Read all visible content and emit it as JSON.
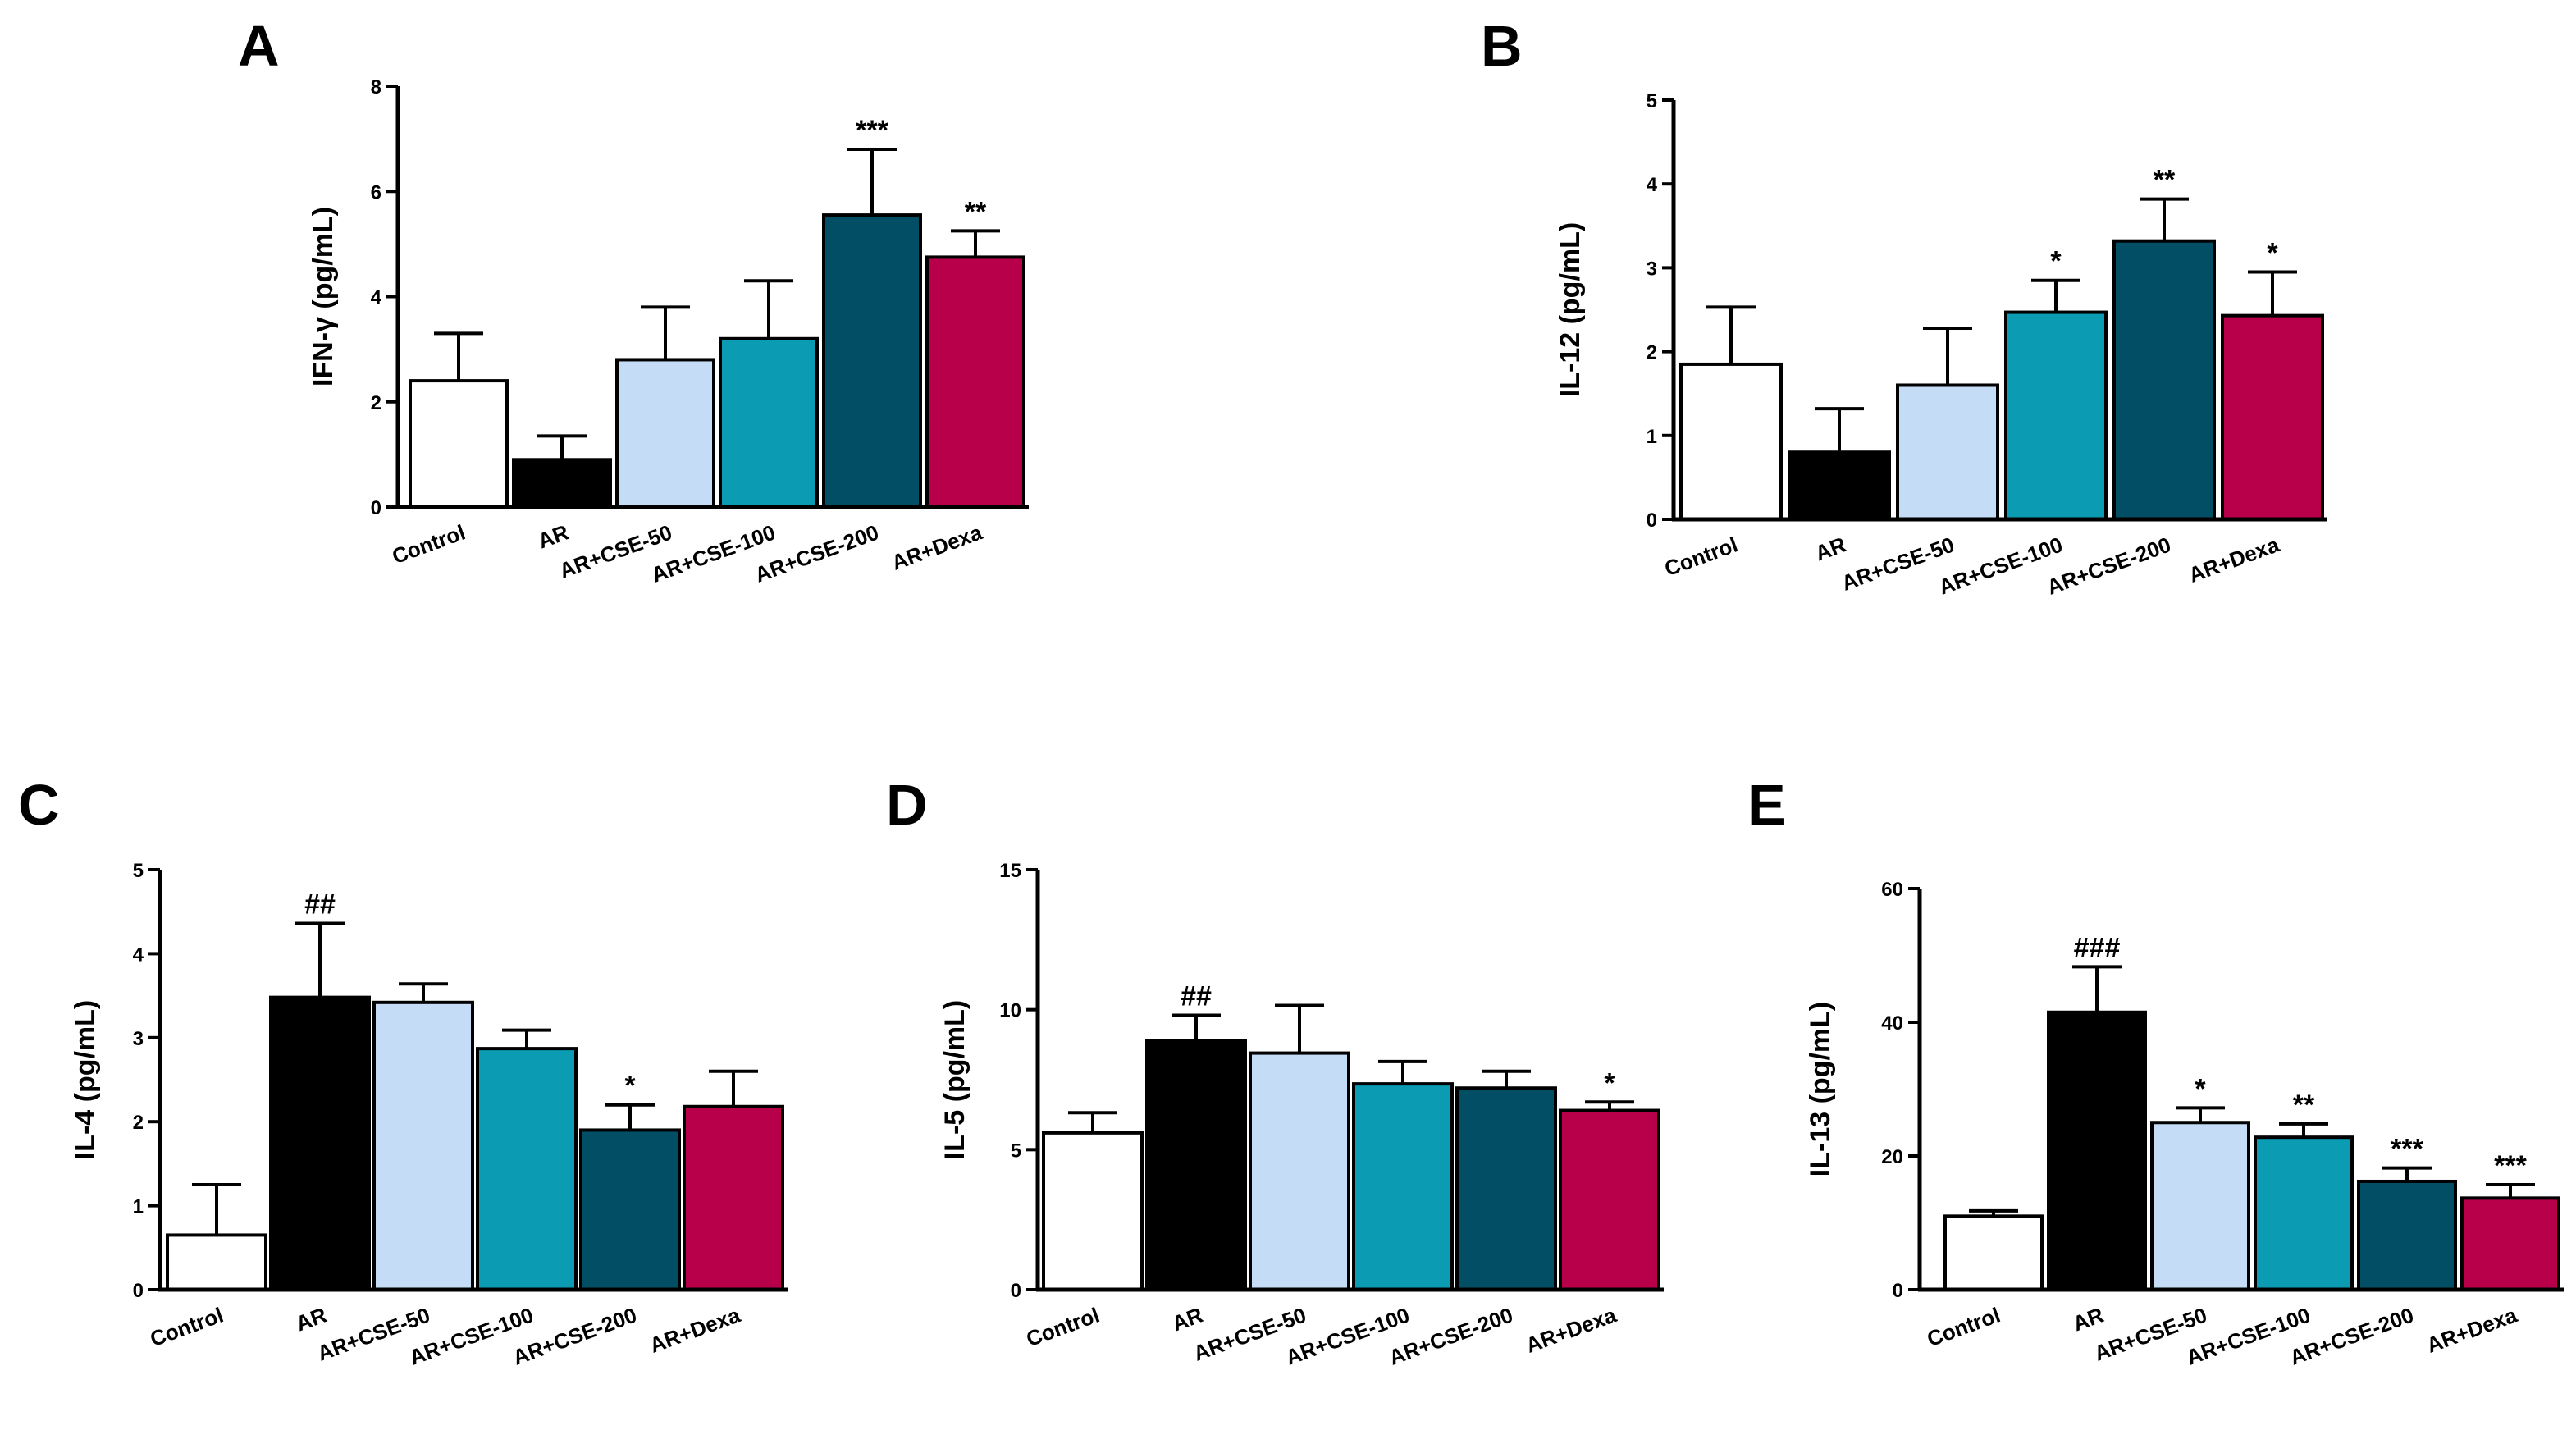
{
  "colors": {
    "Control": "#ffffff",
    "AR": "#000000",
    "AR+CSE-50": "#c4dcf5",
    "AR+CSE-100": "#0b9bb3",
    "AR+CSE-200": "#024f65",
    "AR+Dexa": "#b8004a",
    "axis": "#000000"
  },
  "chart_data": [
    {
      "panel": "A",
      "type": "bar",
      "ylabel": "IFN-γ (pg/mL)",
      "categories": [
        "Control",
        "AR",
        "AR+CSE-50",
        "AR+CSE-100",
        "AR+CSE-200",
        "AR+Dexa"
      ],
      "values": [
        2.4,
        0.9,
        2.8,
        3.2,
        5.55,
        4.75
      ],
      "errors": [
        0.9,
        0.45,
        1.0,
        1.1,
        1.25,
        0.5
      ],
      "significance": [
        "",
        "",
        "",
        "",
        "***",
        "**"
      ],
      "ylim": [
        0,
        8
      ],
      "yticks": [
        "0",
        "2",
        "4",
        "6",
        "8"
      ]
    },
    {
      "panel": "B",
      "type": "bar",
      "ylabel": "IL-12 (pg/mL)",
      "categories": [
        "Control",
        "AR",
        "AR+CSE-50",
        "AR+CSE-100",
        "AR+CSE-200",
        "AR+Dexa"
      ],
      "values": [
        1.85,
        0.8,
        1.6,
        2.47,
        3.32,
        2.43
      ],
      "errors": [
        0.68,
        0.52,
        0.68,
        0.38,
        0.5,
        0.52
      ],
      "significance": [
        "",
        "",
        "",
        "*",
        "**",
        "*"
      ],
      "ylim": [
        0,
        5
      ],
      "yticks": [
        "0",
        "1",
        "2",
        "3",
        "4",
        "5"
      ]
    },
    {
      "panel": "C",
      "type": "bar",
      "ylabel": "IL-4  (pg/mL)",
      "categories": [
        "Control",
        "AR",
        "AR+CSE-50",
        "AR+CSE-100",
        "AR+CSE-200",
        "AR+Dexa"
      ],
      "values": [
        0.65,
        3.48,
        3.42,
        2.87,
        1.9,
        2.18
      ],
      "errors": [
        0.6,
        0.88,
        0.22,
        0.22,
        0.3,
        0.42
      ],
      "significance": [
        "",
        "##",
        "",
        "",
        "*",
        ""
      ],
      "ylim": [
        0,
        5
      ],
      "yticks": [
        "0",
        "1",
        "2",
        "3",
        "4",
        "5"
      ]
    },
    {
      "panel": "D",
      "type": "bar",
      "ylabel": "IL-5  (pg/mL)",
      "categories": [
        "Control",
        "AR",
        "AR+CSE-50",
        "AR+CSE-100",
        "AR+CSE-200",
        "AR+Dexa"
      ],
      "values": [
        5.6,
        8.9,
        8.45,
        7.35,
        7.2,
        6.4
      ],
      "errors": [
        0.72,
        0.9,
        1.7,
        0.8,
        0.6,
        0.3
      ],
      "significance": [
        "",
        "##",
        "",
        "",
        "",
        "*"
      ],
      "ylim": [
        0,
        15
      ],
      "yticks": [
        "0",
        "5",
        "10",
        "15"
      ]
    },
    {
      "panel": "E",
      "type": "bar",
      "ylabel": "IL-13 (pg/mL)",
      "categories": [
        "Control",
        "AR",
        "AR+CSE-50",
        "AR+CSE-100",
        "AR+CSE-200",
        "AR+Dexa"
      ],
      "values": [
        11,
        41.5,
        25,
        22.8,
        16.2,
        13.7
      ],
      "errors": [
        0.8,
        6.8,
        2.2,
        2.0,
        2.0,
        2.0
      ],
      "significance": [
        "",
        "###",
        "*",
        "**",
        "***",
        "***"
      ],
      "ylim": [
        0,
        60
      ],
      "yticks": [
        "0",
        "20",
        "40",
        "60"
      ]
    }
  ]
}
